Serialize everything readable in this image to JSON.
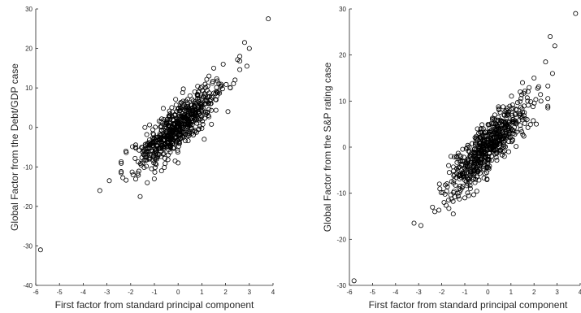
{
  "chart_data": [
    {
      "type": "scatter",
      "xlabel": "First factor from standard principal component",
      "ylabel": "Global Factor from the Debt/GDP case",
      "xlim": [
        -6,
        4
      ],
      "ylim": [
        -40,
        30
      ],
      "xticks": [
        "-6",
        "-5",
        "-4",
        "-3",
        "-2",
        "-1",
        "0",
        "1",
        "2",
        "3",
        "4"
      ],
      "yticks": [
        "-40",
        "-30",
        "-20",
        "-10",
        "0",
        "10",
        "20",
        "30"
      ],
      "grid": false,
      "marker": "open-circle",
      "slope": 5.0,
      "x": [
        -5.8,
        -3.3,
        -2.9,
        -2.4,
        -2.2,
        -1.9,
        -1.6,
        -1.5,
        2.6,
        2.8,
        2.9,
        3.0,
        3.8,
        -1.3,
        -1.1,
        -0.9,
        -0.6,
        -0.3,
        0.1,
        0.4,
        0.7,
        1.0,
        1.3,
        1.6,
        1.9,
        2.2,
        2.4,
        -1.8,
        -1.4,
        -0.7,
        0.0,
        0.5,
        1.1,
        1.5,
        2.1
      ],
      "y": [
        -31,
        -16,
        -13.5,
        -11.5,
        -6,
        -12,
        -17.5,
        -9,
        18,
        21.5,
        15.5,
        20,
        27.5,
        -14,
        -4,
        -8,
        2,
        -3,
        5,
        -2,
        9,
        4,
        13,
        7,
        16,
        10,
        12,
        -5,
        0,
        -11,
        -9,
        8,
        -3,
        15,
        4
      ]
    },
    {
      "type": "scatter",
      "xlabel": "First factor from standard principal component",
      "ylabel": "Global Factor from the S&P rating case",
      "xlim": [
        -6,
        4
      ],
      "ylim": [
        -30,
        30
      ],
      "xticks": [
        "-6",
        "-5",
        "-4",
        "-3",
        "-2",
        "-1",
        "0",
        "1",
        "2",
        "3",
        "4"
      ],
      "yticks": [
        "-30",
        "-20",
        "-10",
        "0",
        "10",
        "20",
        "30"
      ],
      "grid": false,
      "marker": "open-circle",
      "slope": 4.8,
      "x": [
        -5.8,
        -3.2,
        -2.9,
        -2.3,
        -2.1,
        -1.9,
        -1.7,
        -1.5,
        2.5,
        2.7,
        2.8,
        2.9,
        3.8,
        -1.3,
        -1.1,
        -0.8,
        -0.5,
        -0.2,
        0.2,
        0.5,
        0.8,
        1.1,
        1.4,
        1.7,
        2.0,
        2.3,
        -1.6,
        -1.0,
        -0.4,
        0.3,
        0.9,
        1.5,
        2.1
      ],
      "y": [
        -29,
        -16.5,
        -17,
        -14,
        -8,
        -12,
        -4,
        -14.5,
        18.5,
        24,
        16,
        22,
        29,
        -10,
        -3,
        -7,
        2,
        -2,
        6,
        -1,
        8,
        3,
        12,
        6,
        15,
        10,
        -2,
        -11,
        3,
        7,
        -1,
        14,
        5
      ],
      "cloud_seed": 7
    }
  ]
}
